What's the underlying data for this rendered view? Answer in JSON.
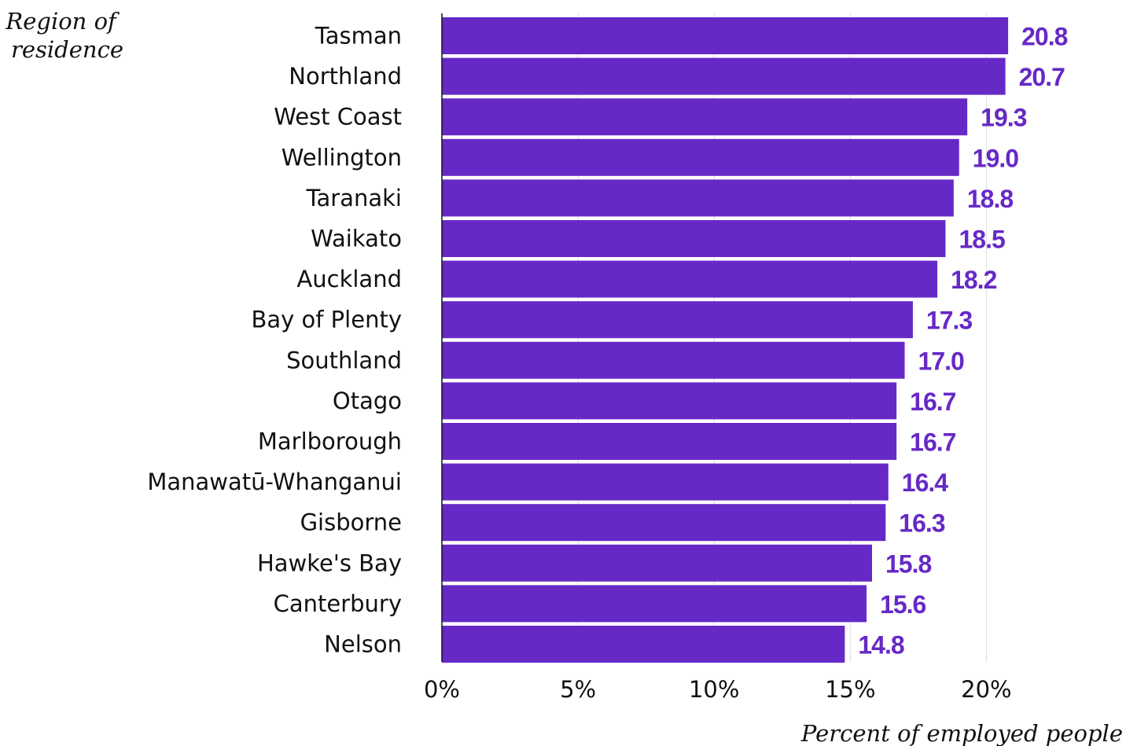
{
  "chart_data": {
    "type": "bar",
    "orientation": "horizontal",
    "ylabel": "Region of residence",
    "ylabel_lines": [
      "Region of",
      "residence"
    ],
    "xlabel": "Percent of employed people",
    "categories": [
      "Tasman",
      "Northland",
      "West Coast",
      "Wellington",
      "Taranaki",
      "Waikato",
      "Auckland",
      "Bay of Plenty",
      "Southland",
      "Otago",
      "Marlborough",
      "Manawatū-Whanganui",
      "Gisborne",
      "Hawke's Bay",
      "Canterbury",
      "Nelson"
    ],
    "values": [
      20.8,
      20.7,
      19.3,
      19.0,
      18.8,
      18.5,
      18.2,
      17.3,
      17.0,
      16.7,
      16.7,
      16.4,
      16.3,
      15.8,
      15.6,
      14.8
    ],
    "value_labels": [
      "20.8",
      "20.7",
      "19.3",
      "19.0",
      "18.8",
      "18.5",
      "18.2",
      "17.3",
      "17.0",
      "16.7",
      "16.7",
      "16.4",
      "16.3",
      "15.8",
      "15.6",
      "14.8"
    ],
    "xlim": [
      0,
      25
    ],
    "xticks": [
      0,
      5,
      10,
      15,
      20
    ],
    "xtick_labels": [
      "0%",
      "5%",
      "10%",
      "15%",
      "20%"
    ],
    "grid": "vertical",
    "legend": "none",
    "colors": {
      "bar": "#6629c6",
      "value_label": "#6629c6",
      "grid": "#dcdcdc",
      "axis": "#111111"
    }
  }
}
